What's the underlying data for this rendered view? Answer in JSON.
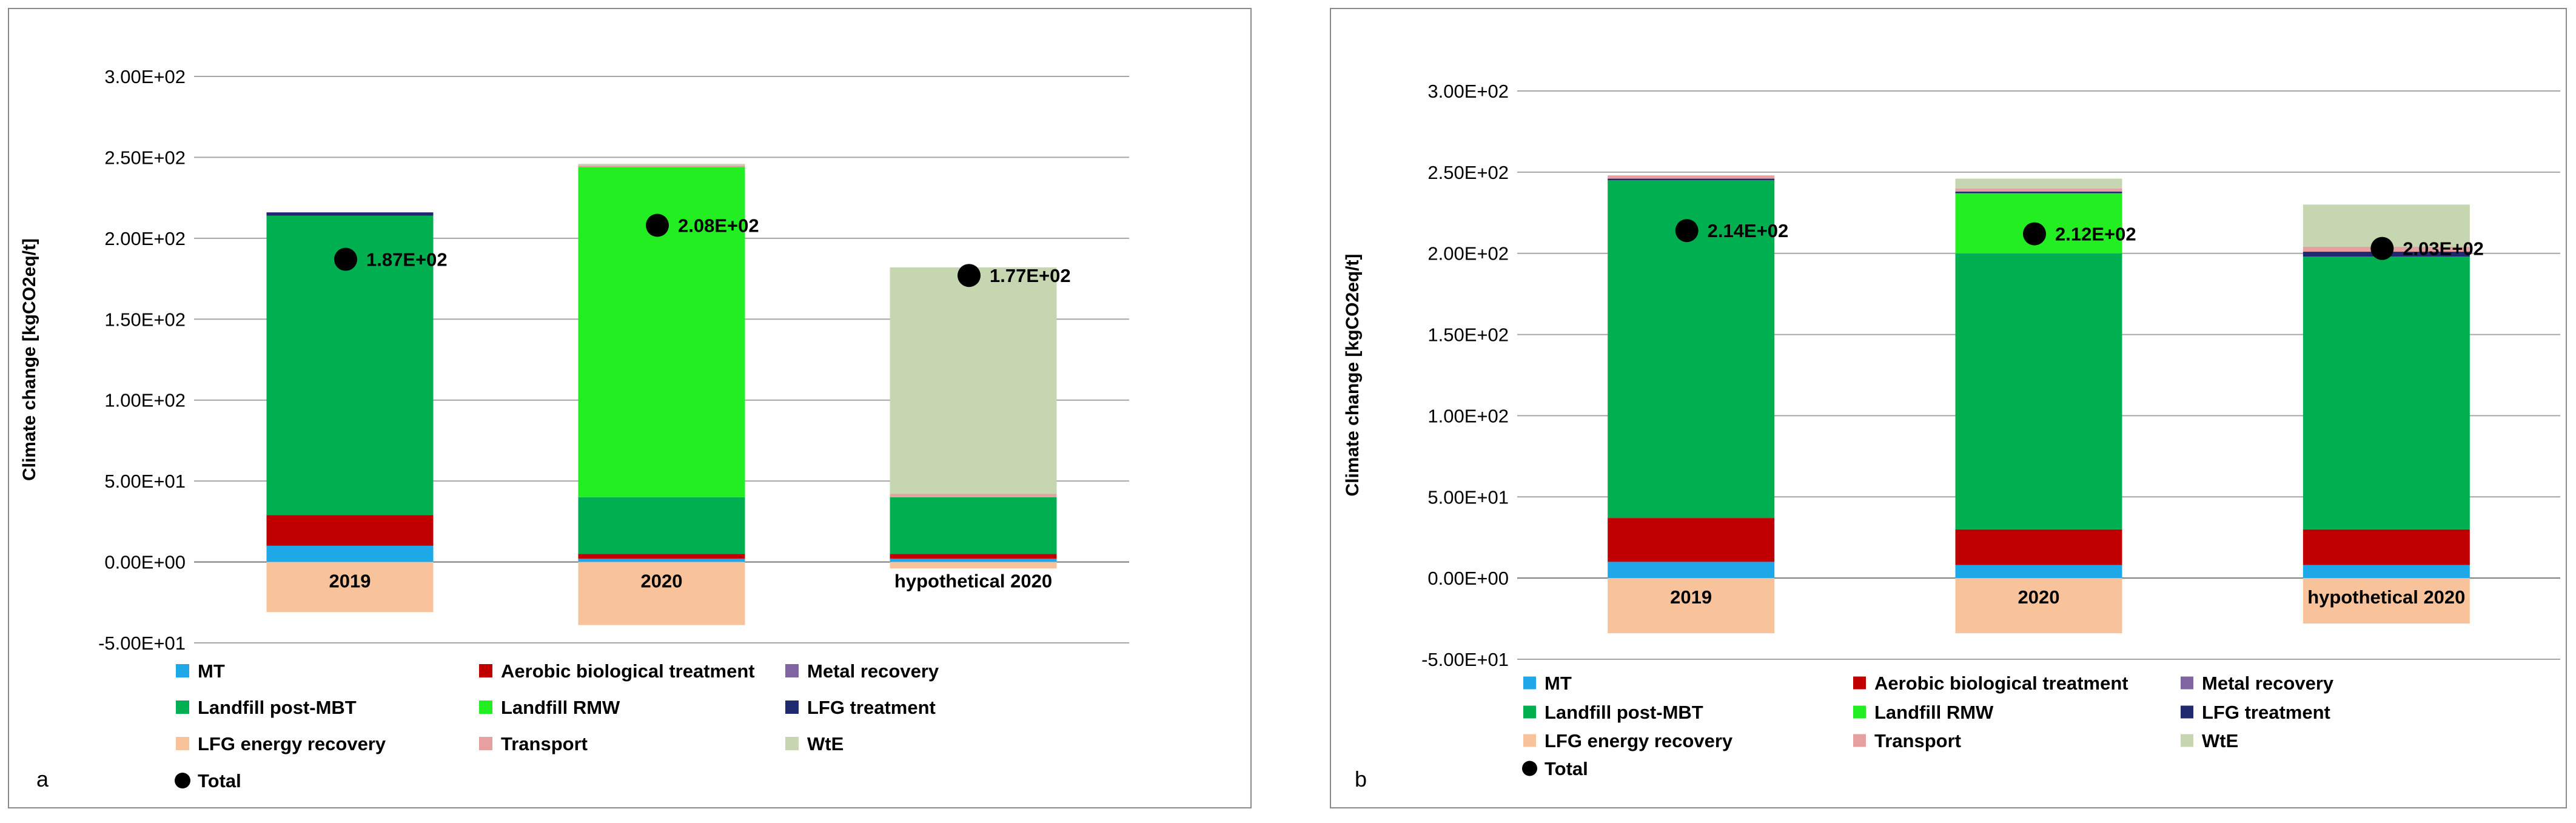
{
  "colors": {
    "MT": "#1ea8e8",
    "Aerobic biological treatment": "#c00000",
    "Metal recovery": "#8064a2",
    "Landfill post-MBT": "#00b050",
    "Landfill RMW": "#22ee22",
    "LFG treatment": "#1f2a6e",
    "LFG energy recovery": "#f8c39b",
    "Transport": "#e6a0a0",
    "WtE": "#c5d6b0",
    "Total": "#000000"
  },
  "chart_data": [
    {
      "panel": "a",
      "type": "bar",
      "stacked": true,
      "ylabel": "Climate change [kgCO2eq/t]",
      "ylim": [
        -50,
        300
      ],
      "yticks": [
        "3.00E+02",
        "2.50E+02",
        "2.00E+02",
        "1.50E+02",
        "1.00E+02",
        "5.00E+01",
        "0.00E+00",
        "-5.00E+01"
      ],
      "ytick_values": [
        300,
        250,
        200,
        150,
        100,
        50,
        0,
        -50
      ],
      "categories": [
        "2019",
        "2020",
        "hypothetical 2020"
      ],
      "series": [
        {
          "name": "MT",
          "values": [
            10,
            2,
            2
          ]
        },
        {
          "name": "Aerobic biological treatment",
          "values": [
            19,
            3,
            3
          ]
        },
        {
          "name": "Metal recovery",
          "values": [
            0,
            0,
            0
          ]
        },
        {
          "name": "Landfill post-MBT",
          "values": [
            185,
            35,
            35
          ]
        },
        {
          "name": "Landfill RMW",
          "values": [
            0,
            204,
            0
          ]
        },
        {
          "name": "LFG treatment",
          "values": [
            2,
            0,
            0
          ]
        },
        {
          "name": "LFG energy recovery",
          "values": [
            -31,
            -39,
            -4
          ]
        },
        {
          "name": "Transport",
          "values": [
            0,
            1,
            2
          ]
        },
        {
          "name": "WtE",
          "values": [
            0,
            1,
            140
          ]
        }
      ],
      "totals": [
        187,
        208,
        177
      ],
      "total_labels": [
        "1.87E+02",
        "2.08E+02",
        "1.77E+02"
      ],
      "legend": [
        [
          "MT",
          "Aerobic biological treatment",
          "Metal recovery"
        ],
        [
          "Landfill post-MBT",
          "Landfill RMW",
          "LFG treatment"
        ],
        [
          "LFG energy recovery",
          "Transport",
          "WtE"
        ],
        [
          "Total"
        ]
      ]
    },
    {
      "panel": "b",
      "type": "bar",
      "stacked": true,
      "ylabel": "Climate change [kgCO2eq/t]",
      "ylim": [
        -50,
        300
      ],
      "yticks": [
        "3.00E+02",
        "2.50E+02",
        "2.00E+02",
        "1.50E+02",
        "1.00E+02",
        "5.00E+01",
        "0.00E+00",
        "-5.00E+01"
      ],
      "ytick_values": [
        300,
        250,
        200,
        150,
        100,
        50,
        0,
        -50
      ],
      "categories": [
        "2019",
        "2020",
        "hypothetical 2020"
      ],
      "series": [
        {
          "name": "MT",
          "values": [
            10,
            8,
            8
          ]
        },
        {
          "name": "Aerobic biological treatment",
          "values": [
            27,
            22,
            22
          ]
        },
        {
          "name": "Metal recovery",
          "values": [
            0,
            0,
            0
          ]
        },
        {
          "name": "Landfill post-MBT",
          "values": [
            208,
            170,
            168
          ]
        },
        {
          "name": "Landfill RMW",
          "values": [
            0,
            37,
            0
          ]
        },
        {
          "name": "LFG treatment",
          "values": [
            1,
            1,
            3
          ]
        },
        {
          "name": "LFG energy recovery",
          "values": [
            -34,
            -34,
            -28
          ]
        },
        {
          "name": "Transport",
          "values": [
            2,
            2,
            3
          ]
        },
        {
          "name": "WtE",
          "values": [
            0,
            6,
            26
          ]
        }
      ],
      "totals": [
        214,
        212,
        203
      ],
      "total_labels": [
        "2.14E+02",
        "2.12E+02",
        "2.03E+02"
      ],
      "legend": [
        [
          "MT",
          "Aerobic biological treatment",
          "Metal recovery"
        ],
        [
          "Landfill post-MBT",
          "Landfill RMW",
          "LFG treatment"
        ],
        [
          "LFG energy recovery",
          "Transport",
          "WtE"
        ],
        [
          "Total"
        ]
      ]
    }
  ]
}
